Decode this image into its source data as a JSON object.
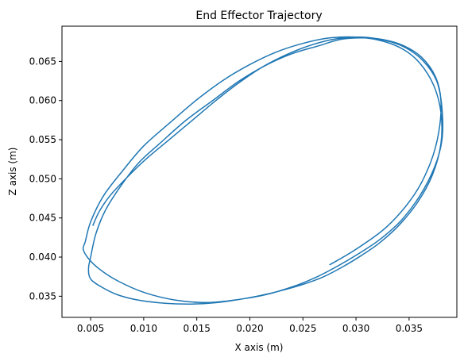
{
  "chart_data": {
    "type": "line",
    "title": "End Effector Trajectory",
    "xlabel": "X axis (m)",
    "ylabel": "Z axis (m)",
    "xlim": [
      0.0023,
      0.0395
    ],
    "ylim": [
      0.0323,
      0.0695
    ],
    "xticks": [
      0.005,
      0.01,
      0.015,
      0.02,
      0.025,
      0.03,
      0.035
    ],
    "xtick_labels": [
      "0.005",
      "0.010",
      "0.015",
      "0.020",
      "0.025",
      "0.030",
      "0.035"
    ],
    "yticks": [
      0.035,
      0.04,
      0.045,
      0.05,
      0.055,
      0.06,
      0.065
    ],
    "ytick_labels": [
      "0.035",
      "0.040",
      "0.045",
      "0.050",
      "0.055",
      "0.060",
      "0.065"
    ],
    "grid": false,
    "legend": "none",
    "line_color": "#1f77b4",
    "series": [
      {
        "x": [
          0.0275,
          0.03,
          0.033,
          0.0355,
          0.037,
          0.0378,
          0.038,
          0.0375,
          0.0362,
          0.0345,
          0.0325,
          0.0305,
          0.0285,
          0.0265,
          0.024,
          0.0215,
          0.019,
          0.0165,
          0.014,
          0.0115,
          0.0095,
          0.0078,
          0.0064,
          0.0055,
          0.005,
          0.0048,
          0.005,
          0.006,
          0.0075,
          0.0095,
          0.012,
          0.0145,
          0.017,
          0.0195,
          0.022,
          0.0245,
          0.0268,
          0.0288,
          0.0305,
          0.0322,
          0.034,
          0.0358,
          0.0372,
          0.038,
          0.038,
          0.0373,
          0.036,
          0.0345,
          0.0325,
          0.03,
          0.0275,
          0.025,
          0.0225,
          0.02,
          0.0175,
          0.015,
          0.0125,
          0.01,
          0.008,
          0.0062,
          0.005,
          0.0045,
          0.0043,
          0.0048,
          0.0058,
          0.0075,
          0.01,
          0.013,
          0.016,
          0.019,
          0.0215,
          0.024,
          0.0262,
          0.0282,
          0.0302,
          0.0322,
          0.0342,
          0.036,
          0.0374,
          0.0381,
          0.0381,
          0.0376,
          0.0363,
          0.0346,
          0.0327,
          0.0305,
          0.0282,
          0.0258,
          0.0235,
          0.0212,
          0.019,
          0.0168,
          0.0146,
          0.0124,
          0.0102,
          0.0083,
          0.0068,
          0.0058,
          0.0052
        ],
        "y": [
          0.039,
          0.041,
          0.044,
          0.048,
          0.052,
          0.056,
          0.06,
          0.063,
          0.0655,
          0.067,
          0.0678,
          0.068,
          0.0678,
          0.067,
          0.066,
          0.0645,
          0.0625,
          0.06,
          0.0575,
          0.0545,
          0.052,
          0.049,
          0.046,
          0.043,
          0.04,
          0.0385,
          0.0372,
          0.0362,
          0.0352,
          0.0345,
          0.0341,
          0.034,
          0.0342,
          0.0347,
          0.0354,
          0.0363,
          0.0374,
          0.0388,
          0.0402,
          0.0418,
          0.044,
          0.047,
          0.0505,
          0.0545,
          0.0585,
          0.062,
          0.0648,
          0.0665,
          0.0676,
          0.0681,
          0.068,
          0.0673,
          0.0662,
          0.0646,
          0.0626,
          0.0601,
          0.0572,
          0.0542,
          0.051,
          0.0478,
          0.0445,
          0.042,
          0.041,
          0.0398,
          0.0385,
          0.037,
          0.0355,
          0.0345,
          0.0342,
          0.0346,
          0.0352,
          0.0362,
          0.0374,
          0.0388,
          0.0404,
          0.0422,
          0.0446,
          0.0478,
          0.0515,
          0.055,
          0.059,
          0.0625,
          0.0651,
          0.0668,
          0.0677,
          0.0681,
          0.0679,
          0.0671,
          0.0659,
          0.0643,
          0.0623,
          0.06,
          0.0575,
          0.055,
          0.0525,
          0.05,
          0.0478,
          0.0458,
          0.044
        ]
      }
    ]
  }
}
